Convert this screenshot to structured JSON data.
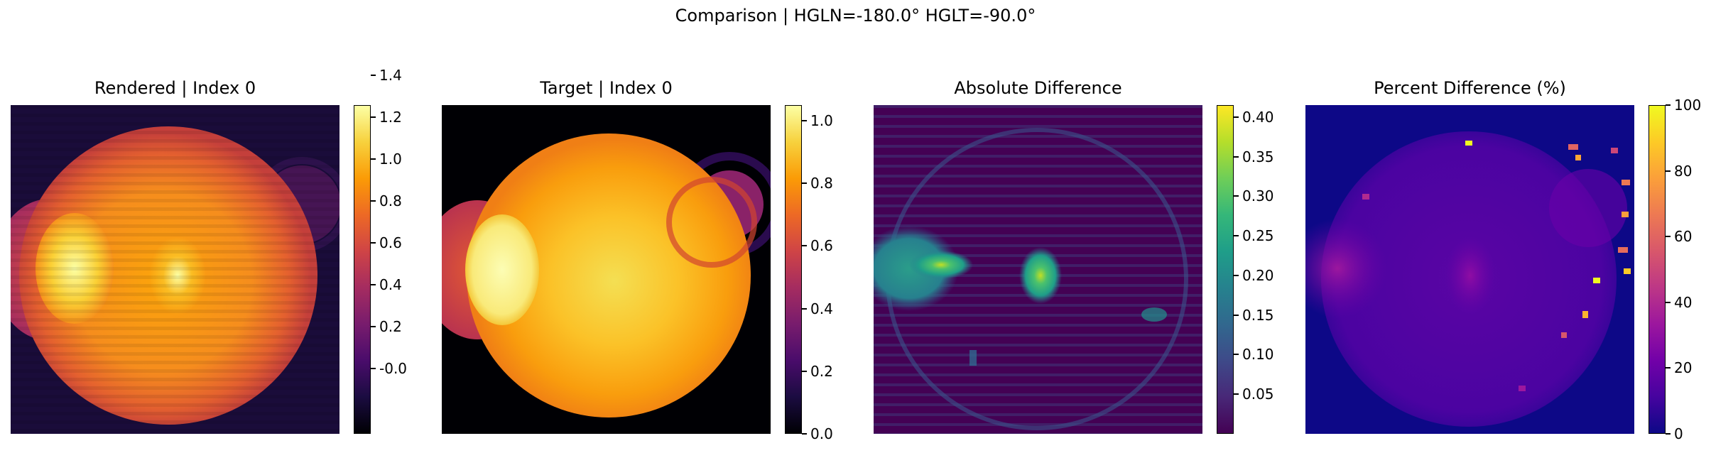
{
  "figure": {
    "suptitle": "Comparison | HGLN=-180.0° HGLT=-90.0°"
  },
  "panels": [
    {
      "title": "Rendered | Index 0",
      "colormap": "inferno",
      "colorbar": {
        "min": -0.12,
        "max": 1.45,
        "ticks": [
          "-0.0",
          "0.2",
          "0.4",
          "0.6",
          "0.8",
          "1.0",
          "1.2",
          "1.4"
        ],
        "tick_values": [
          0.0,
          0.2,
          0.4,
          0.6,
          0.8,
          1.0,
          1.2,
          1.4
        ]
      }
    },
    {
      "title": "Target | Index 0",
      "colormap": "inferno",
      "colorbar": {
        "min": 0.0,
        "max": 1.05,
        "ticks": [
          "0.0",
          "0.2",
          "0.4",
          "0.6",
          "0.8",
          "1.0"
        ],
        "tick_values": [
          0.0,
          0.2,
          0.4,
          0.6,
          0.8,
          1.0
        ]
      }
    },
    {
      "title": "Absolute Difference",
      "colormap": "viridis",
      "colorbar": {
        "min": 0.0,
        "max": 0.415,
        "ticks": [
          "0.05",
          "0.10",
          "0.15",
          "0.20",
          "0.25",
          "0.30",
          "0.35",
          "0.40"
        ],
        "tick_values": [
          0.05,
          0.1,
          0.15,
          0.2,
          0.25,
          0.3,
          0.35,
          0.4
        ]
      }
    },
    {
      "title": "Percent Difference (%)",
      "colormap": "plasma",
      "colorbar": {
        "min": 0,
        "max": 100,
        "ticks": [
          "0",
          "20",
          "40",
          "60",
          "80",
          "100"
        ],
        "tick_values": [
          0,
          20,
          40,
          60,
          80,
          100
        ]
      }
    }
  ],
  "chart_data": [
    {
      "type": "heatmap",
      "title": "Rendered | Index 0",
      "colormap": "inferno",
      "value_range": [
        -0.12,
        1.45
      ],
      "features": [
        "large bright disk",
        "bright oval limb on left",
        "horizontal striping",
        "faint ring upper right"
      ]
    },
    {
      "type": "heatmap",
      "title": "Target | Index 0",
      "colormap": "inferno",
      "value_range": [
        0.0,
        1.05
      ],
      "features": [
        "smooth bright disk",
        "bright oval limb on left",
        "dark ring upper right"
      ]
    },
    {
      "type": "heatmap",
      "title": "Absolute Difference",
      "colormap": "viridis",
      "value_range": [
        0.0,
        0.415
      ],
      "features": [
        "hot spot left",
        "hot spot center",
        "faint circular outline"
      ]
    },
    {
      "type": "heatmap",
      "title": "Percent Difference (%)",
      "colormap": "plasma",
      "value_range": [
        0,
        100
      ],
      "features": [
        "purple disk",
        "bright pixels at right rim"
      ]
    }
  ]
}
